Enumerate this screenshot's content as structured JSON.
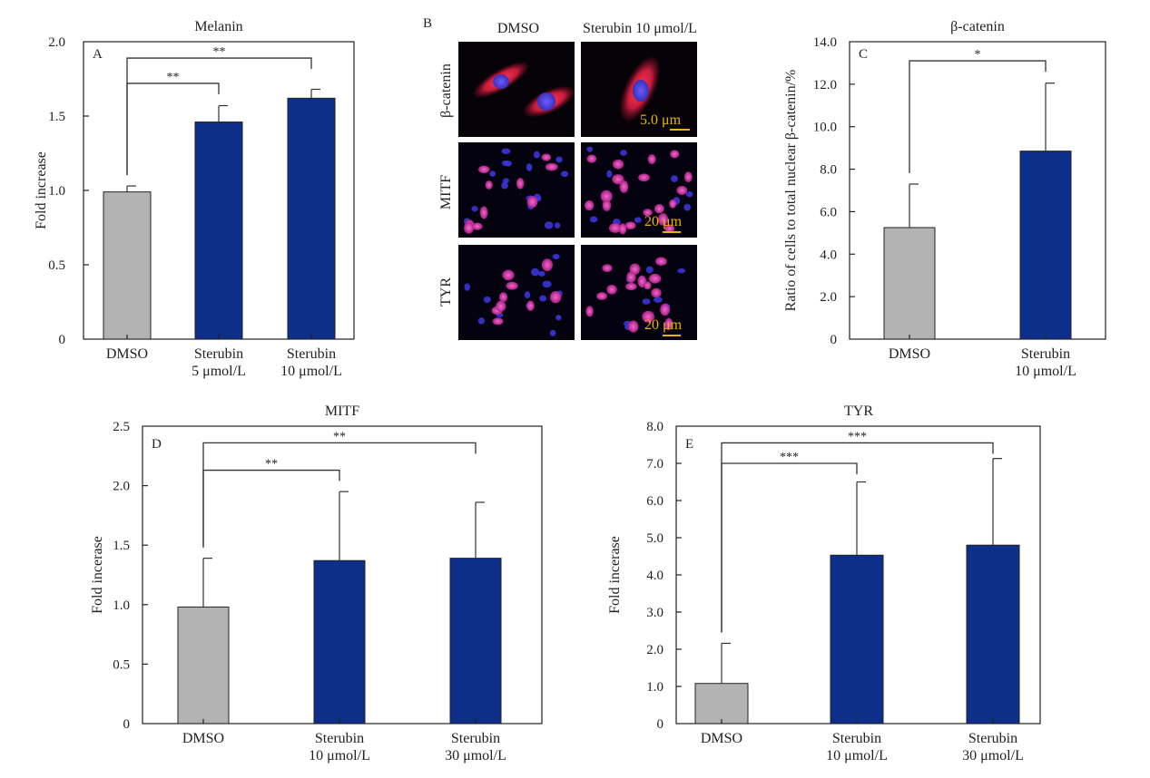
{
  "chart_data": [
    {
      "id": "A",
      "type": "bar",
      "panel_label": "A",
      "title": "Melanin",
      "ylabel": "Fold increase",
      "ylim": [
        0,
        2.0
      ],
      "yticks": [
        0,
        0.5,
        1.0,
        1.5,
        2.0
      ],
      "ytick_labels": [
        "0",
        "0.5",
        "1.0",
        "1.5",
        "2.0"
      ],
      "categories": [
        [
          "DMSO"
        ],
        [
          "Sterubin",
          "5 μmol/L"
        ],
        [
          "Sterubin",
          "10 μmol/L"
        ]
      ],
      "values": [
        0.99,
        1.46,
        1.62
      ],
      "errors": [
        0.04,
        0.11,
        0.06
      ],
      "bar_colors": [
        "#b3b3b3",
        "#0d2f8a",
        "#0d2f8a"
      ],
      "significance": [
        {
          "from": 0,
          "to": 1,
          "label": "**",
          "y": 1.72
        },
        {
          "from": 0,
          "to": 2,
          "label": "**",
          "y": 1.89
        }
      ]
    },
    {
      "id": "C",
      "type": "bar",
      "panel_label": "C",
      "title": "β-catenin",
      "ylabel": "Ratio of cells to total nuclear β-catenin/%",
      "ylim": [
        0,
        14.0
      ],
      "yticks": [
        0,
        2,
        4,
        6,
        8,
        10,
        12,
        14
      ],
      "ytick_labels": [
        "0",
        "2.0",
        "4.0",
        "6.0",
        "8.0",
        "10.0",
        "12.0",
        "14.0"
      ],
      "categories": [
        [
          "DMSO"
        ],
        [
          "Sterubin",
          "10 μmol/L"
        ]
      ],
      "values": [
        5.25,
        8.85
      ],
      "errors": [
        2.05,
        3.2
      ],
      "bar_colors": [
        "#b3b3b3",
        "#0d2f8a"
      ],
      "significance": [
        {
          "from": 0,
          "to": 1,
          "label": "*",
          "y": 13.1
        }
      ]
    },
    {
      "id": "D",
      "type": "bar",
      "panel_label": "D",
      "title": "MITF",
      "ylabel": "Fold incerase",
      "ylim": [
        0,
        2.5
      ],
      "yticks": [
        0,
        0.5,
        1.0,
        1.5,
        2.0,
        2.5
      ],
      "ytick_labels": [
        "0",
        "0.5",
        "1.0",
        "1.5",
        "2.0",
        "2.5"
      ],
      "categories": [
        [
          "DMSO"
        ],
        [
          "Sterubin",
          "10 μmol/L"
        ],
        [
          "Sterubin",
          "30 μmol/L"
        ]
      ],
      "values": [
        0.98,
        1.37,
        1.39
      ],
      "errors": [
        0.41,
        0.58,
        0.47
      ],
      "bar_colors": [
        "#b3b3b3",
        "#0d2f8a",
        "#0d2f8a"
      ],
      "significance": [
        {
          "from": 0,
          "to": 1,
          "label": "**",
          "y": 2.13
        },
        {
          "from": 0,
          "to": 2,
          "label": "**",
          "y": 2.36
        }
      ]
    },
    {
      "id": "E",
      "type": "bar",
      "panel_label": "E",
      "title": "TYR",
      "ylabel": "Fold incerase",
      "ylim": [
        0,
        8.0
      ],
      "yticks": [
        0,
        1,
        2,
        3,
        4,
        5,
        6,
        7,
        8
      ],
      "ytick_labels": [
        "0",
        "1.0",
        "2.0",
        "3.0",
        "4.0",
        "5.0",
        "6.0",
        "7.0",
        "8.0"
      ],
      "categories": [
        [
          "DMSO"
        ],
        [
          "Sterubin",
          "10 μmol/L"
        ],
        [
          "Sterubin",
          "30 μmol/L"
        ]
      ],
      "values": [
        1.08,
        4.53,
        4.8
      ],
      "errors": [
        1.08,
        1.97,
        2.33
      ],
      "bar_colors": [
        "#b3b3b3",
        "#0d2f8a",
        "#0d2f8a"
      ],
      "significance": [
        {
          "from": 0,
          "to": 1,
          "label": "***",
          "y": 7.0
        },
        {
          "from": 0,
          "to": 2,
          "label": "***",
          "y": 7.55
        }
      ]
    }
  ],
  "microscopy": {
    "panel_label": "B",
    "columns": [
      "DMSO",
      "Sterubin 10 μmol/L"
    ],
    "rows": [
      "β-catenin",
      "MITF",
      "TYR"
    ],
    "scale_bars": [
      "5.0 μm",
      "20 μm",
      "20 μm"
    ]
  }
}
